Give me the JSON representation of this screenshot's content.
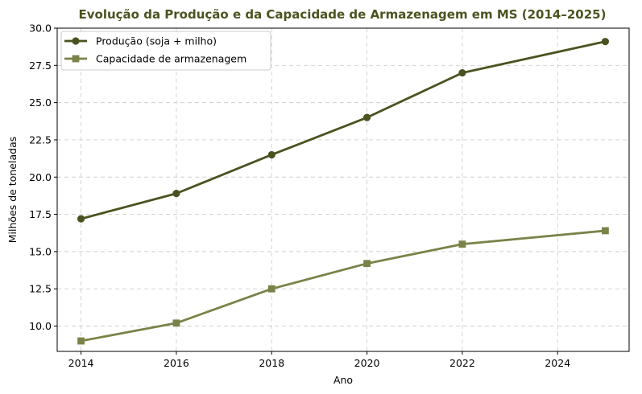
{
  "chart_data": {
    "type": "line",
    "title": "Evolução da Produção e da Capacidade de Armazenagem em MS (2014–2025)",
    "xlabel": "Ano",
    "ylabel": "Milhões de toneladas",
    "xlim": [
      2013.5,
      2025.5
    ],
    "ylim": [
      8.3,
      30.0
    ],
    "xticks": [
      2014,
      2016,
      2018,
      2020,
      2022,
      2024
    ],
    "yticks": [
      10.0,
      12.5,
      15.0,
      17.5,
      20.0,
      22.5,
      25.0,
      27.5,
      30.0
    ],
    "x": [
      2014,
      2016,
      2018,
      2020,
      2022,
      2025
    ],
    "grid": true,
    "legend_position": "top-left",
    "series": [
      {
        "name": "Produção (soja + milho)",
        "values": [
          17.2,
          18.9,
          21.5,
          24.0,
          27.0,
          29.1
        ],
        "color": "#4a5320",
        "marker": "circle"
      },
      {
        "name": "Capacidade de armazenagem",
        "values": [
          9.0,
          10.2,
          12.5,
          14.2,
          15.5,
          16.4
        ],
        "color": "#7b8249",
        "marker": "square"
      }
    ],
    "title_color": "#4a5320"
  }
}
